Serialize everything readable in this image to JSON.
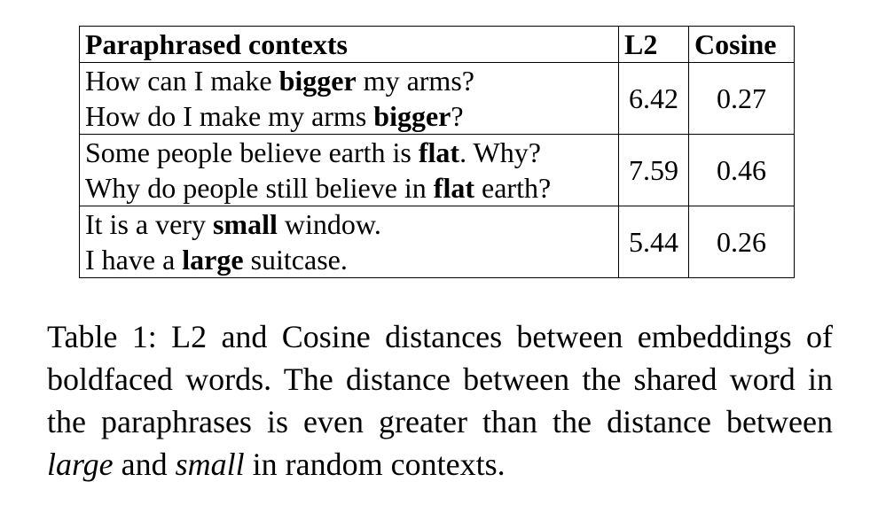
{
  "table": {
    "headers": [
      "Paraphrased contexts",
      "L2",
      "Cosine"
    ],
    "rows": [
      {
        "s1": {
          "pre": "How can I make ",
          "bold": "bigger",
          "post": " my arms?"
        },
        "s2": {
          "pre": "How do I make my arms ",
          "bold": "bigger",
          "post": "?"
        },
        "l2": "6.42",
        "cosine": "0.27"
      },
      {
        "s1": {
          "pre": "Some people believe earth is ",
          "bold": "flat",
          "post": ". Why?"
        },
        "s2": {
          "pre": "Why do people still believe in ",
          "bold": "flat",
          "post": " earth?"
        },
        "l2": "7.59",
        "cosine": "0.46"
      },
      {
        "s1": {
          "pre": "It is a very ",
          "bold": "small",
          "post": " window."
        },
        "s2": {
          "pre": "I have a ",
          "bold": "large",
          "post": " suitcase."
        },
        "l2": "5.44",
        "cosine": "0.26"
      }
    ]
  },
  "caption": {
    "part1": "Table 1: L2 and Cosine distances between embeddings of boldfaced words.  The distance between the shared word in the paraphrases is even greater than the distance between ",
    "italic1": "large",
    "part2": " and ",
    "italic2": "small",
    "part3": " in random contexts."
  }
}
